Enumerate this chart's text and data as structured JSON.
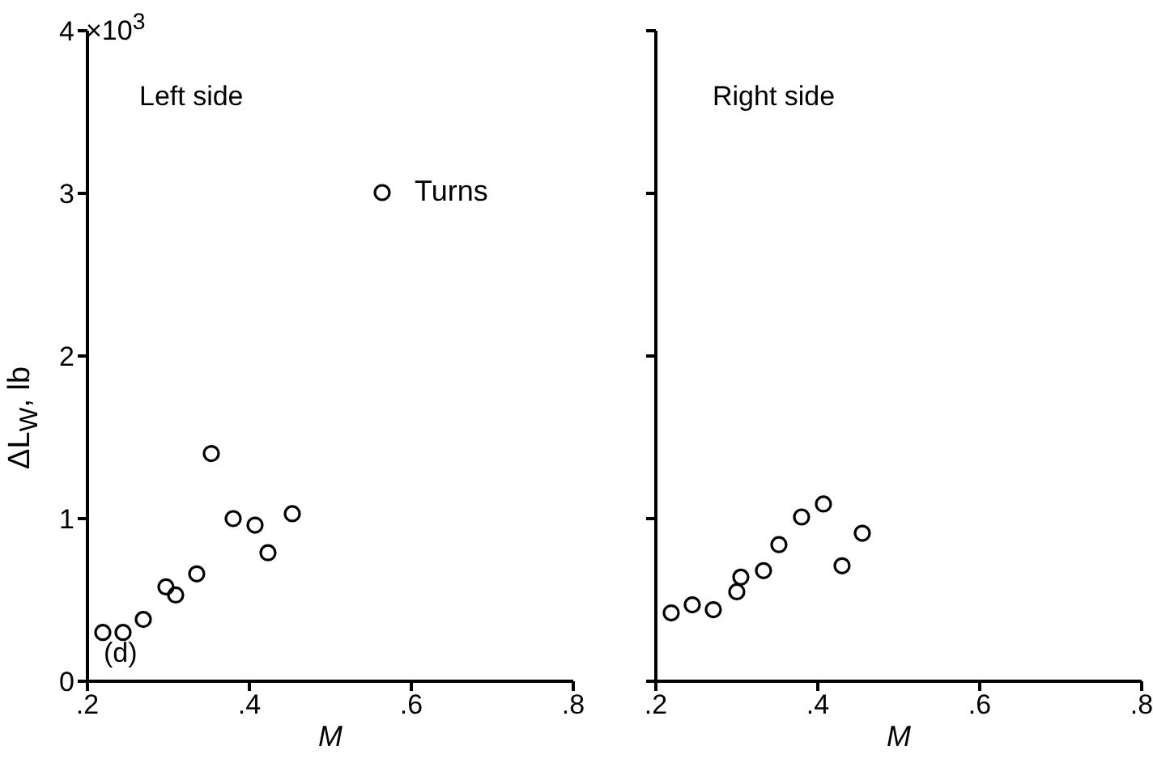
{
  "chart_data": [
    {
      "type": "scatter",
      "xlabel": "M",
      "ylabel": "ΔL$_{W}$, lb",
      "annotations": [
        "×10$^{3}$",
        "Left side",
        "(d)"
      ],
      "xlim": [
        0.2,
        0.8
      ],
      "xticks": [
        {
          "value": 0.2,
          "label": ".2"
        },
        {
          "value": 0.4,
          "label": ".4"
        },
        {
          "value": 0.6,
          "label": ".6"
        },
        {
          "value": 0.8,
          "label": ".8"
        }
      ],
      "ylim": [
        0,
        4
      ],
      "yticks": [
        0,
        1,
        2,
        3,
        4
      ],
      "marker": "circle",
      "legend": "top right",
      "grid": false,
      "series": [
        {
          "name": "Turns",
          "color": "#000000",
          "x": [
            0.219,
            0.244,
            0.269,
            0.297,
            0.309,
            0.335,
            0.353,
            0.38,
            0.407,
            0.423,
            0.453
          ],
          "values": [
            0.3,
            0.3,
            0.38,
            0.58,
            0.53,
            0.66,
            1.4,
            1.0,
            0.96,
            0.79,
            1.03
          ]
        }
      ]
    },
    {
      "type": "scatter",
      "xlabel": "M",
      "annotations": [
        "Right side"
      ],
      "xlim": [
        0.2,
        0.8
      ],
      "xticks": [
        {
          "value": 0.2,
          "label": ".2"
        },
        {
          "value": 0.4,
          "label": ".4"
        },
        {
          "value": 0.6,
          "label": ".6"
        },
        {
          "value": 0.8,
          "label": ".8"
        }
      ],
      "ylim": [
        0,
        4
      ],
      "yticks": [
        0,
        1,
        2,
        3,
        4
      ],
      "tick_labels": "x",
      "marker": "circle",
      "grid": false,
      "series": [
        {
          "color": "#000000",
          "x": [
            0.219,
            0.245,
            0.271,
            0.3,
            0.305,
            0.333,
            0.352,
            0.38,
            0.407,
            0.43,
            0.455
          ],
          "values": [
            0.42,
            0.47,
            0.44,
            0.55,
            0.64,
            0.68,
            0.84,
            1.01,
            1.09,
            0.71,
            0.91
          ]
        }
      ]
    }
  ]
}
